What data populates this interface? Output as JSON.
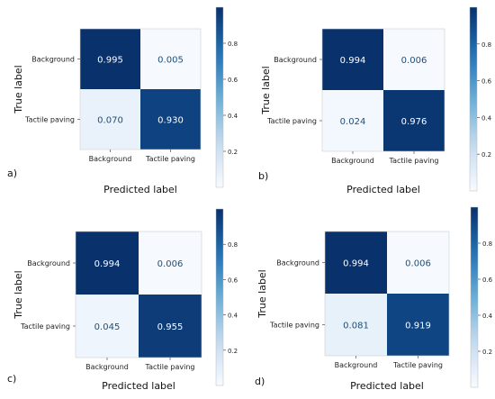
{
  "colorscale": {
    "low": "#f7fbff",
    "high": "#08306b"
  },
  "chart_data": [
    {
      "type": "heatmap",
      "panel_label": "a)",
      "x_categories": [
        "Background",
        "Tactile paving"
      ],
      "y_categories": [
        "Background",
        "Tactile paving"
      ],
      "values": [
        [
          0.995,
          0.005
        ],
        [
          0.07,
          0.93
        ]
      ],
      "xlabel": "Predicted label",
      "ylabel": "True label",
      "colorbar_ticks": [
        "0.2",
        "0.4",
        "0.6",
        "0.8"
      ],
      "colorbar_range": [
        0,
        1
      ]
    },
    {
      "type": "heatmap",
      "panel_label": "b)",
      "x_categories": [
        "Background",
        "Tactile paving"
      ],
      "y_categories": [
        "Background",
        "Tactile paving"
      ],
      "values": [
        [
          0.994,
          0.006
        ],
        [
          0.024,
          0.976
        ]
      ],
      "xlabel": "Predicted label",
      "ylabel": "True label",
      "colorbar_ticks": [
        "0.2",
        "0.4",
        "0.6",
        "0.8"
      ],
      "colorbar_range": [
        0,
        1
      ]
    },
    {
      "type": "heatmap",
      "panel_label": "c)",
      "x_categories": [
        "Background",
        "Tactile paving"
      ],
      "y_categories": [
        "Background",
        "Tactile paving"
      ],
      "values": [
        [
          0.994,
          0.006
        ],
        [
          0.045,
          0.955
        ]
      ],
      "xlabel": "Predicted label",
      "ylabel": "True label",
      "colorbar_ticks": [
        "0.2",
        "0.4",
        "0.6",
        "0.8"
      ],
      "colorbar_range": [
        0,
        1
      ]
    },
    {
      "type": "heatmap",
      "panel_label": "d)",
      "x_categories": [
        "Background",
        "Tactile paving"
      ],
      "y_categories": [
        "Background",
        "Tactile paving"
      ],
      "values": [
        [
          0.994,
          0.006
        ],
        [
          0.081,
          0.919
        ]
      ],
      "xlabel": "Predicted label",
      "ylabel": "True label",
      "colorbar_ticks": [
        "0.2",
        "0.4",
        "0.6",
        "0.8"
      ],
      "colorbar_range": [
        0,
        1
      ]
    }
  ]
}
